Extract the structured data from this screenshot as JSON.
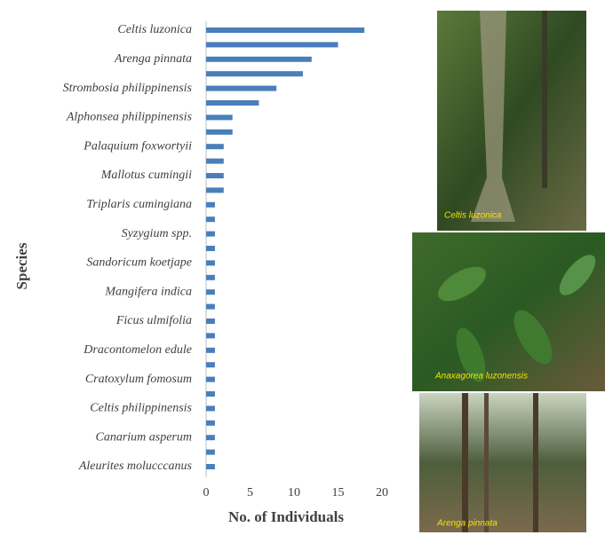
{
  "chart_data": {
    "type": "hbar",
    "x_label": "No. of Individuals",
    "y_label": "Species",
    "categories": [
      "Celtis luzonica",
      null,
      "Arenga pinnata",
      null,
      "Strombosia philippinensis",
      null,
      "Alphonsea philippinensis",
      null,
      "Palaquium foxwortyii",
      null,
      "Mallotus cumingii",
      null,
      "Triplaris cumingiana",
      null,
      "Syzygium spp.",
      null,
      "Sandoricum koetjape",
      null,
      "Mangifera indica",
      null,
      "Ficus ulmifolia",
      null,
      "Dracontomelon edule",
      null,
      "Cratoxylum fomosum",
      null,
      "Celtis philippinensis",
      null,
      "Canarium asperum",
      null,
      "Aleurites molucccanus"
    ],
    "values": [
      18,
      15,
      12,
      11,
      8,
      6,
      3,
      3,
      2,
      2,
      2,
      2,
      1,
      1,
      1,
      1,
      1,
      1,
      1,
      1,
      1,
      1,
      1,
      1,
      1,
      1,
      1,
      1,
      1,
      1,
      1
    ],
    "color": "#4a7ebb",
    "xlim": [
      0,
      20
    ],
    "xticks": [
      0,
      5,
      10,
      15,
      20
    ]
  },
  "photos": [
    {
      "caption": "Celtis luzonica"
    },
    {
      "caption": "Anaxagorea luzonensis"
    },
    {
      "caption": "Arenga pinnata"
    }
  ]
}
